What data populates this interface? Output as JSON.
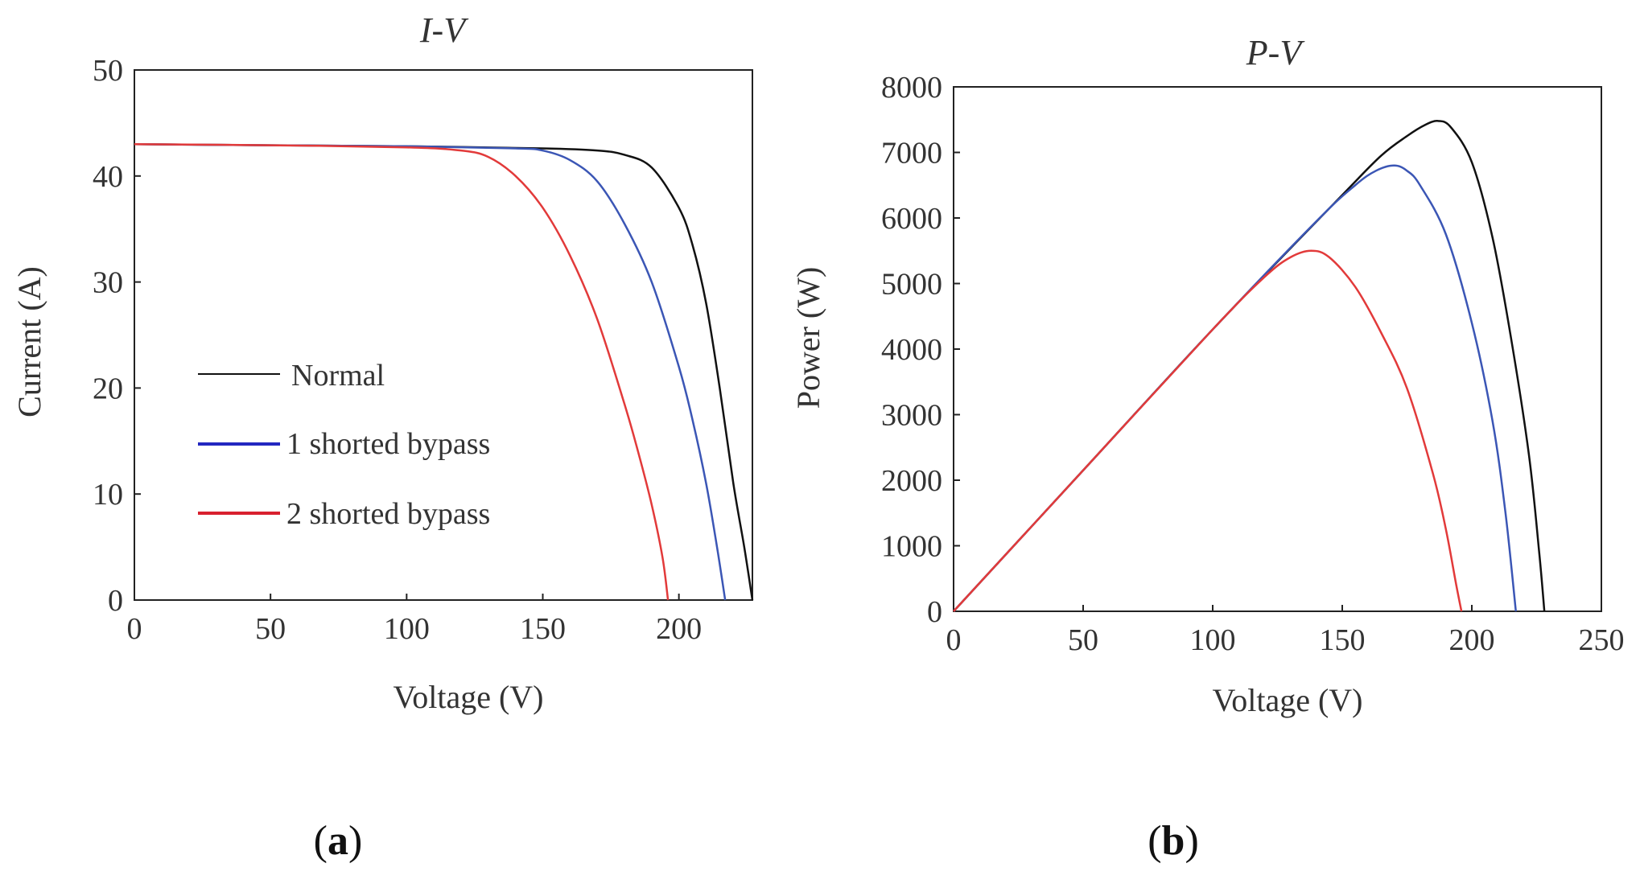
{
  "chart_data": [
    {
      "type": "line",
      "title": "I-V",
      "xlabel": "Voltage (V)",
      "ylabel": "Current (A)",
      "xlim": [
        0,
        227
      ],
      "ylim": [
        0,
        50
      ],
      "xticks": [
        0,
        50,
        100,
        150,
        200
      ],
      "yticks": [
        0,
        10,
        20,
        30,
        40,
        50
      ],
      "grid": false,
      "legend_position": "center-left",
      "panel_label": {
        "open": "(",
        "letter": "a",
        "close": ")"
      },
      "series": [
        {
          "name": "Normal",
          "color": "#111111",
          "x": [
            0,
            50,
            100,
            150,
            170,
            180,
            190,
            200,
            205,
            210,
            215,
            220,
            224,
            227
          ],
          "y": [
            43.0,
            42.9,
            42.8,
            42.6,
            42.4,
            42.0,
            40.8,
            37.0,
            33.5,
            28.0,
            20.0,
            11.0,
            5.0,
            0
          ]
        },
        {
          "name": "1 shorted bypass",
          "color": "#3b56b5",
          "x": [
            0,
            50,
            100,
            140,
            150,
            160,
            170,
            180,
            190,
            200,
            205,
            210,
            214,
            217
          ],
          "y": [
            43.0,
            42.9,
            42.8,
            42.6,
            42.4,
            41.5,
            39.5,
            35.5,
            30.0,
            22.0,
            17.0,
            11.0,
            5.0,
            0
          ]
        },
        {
          "name": "2 shorted bypass",
          "color": "#e23a3a",
          "x": [
            0,
            50,
            100,
            120,
            130,
            140,
            150,
            160,
            170,
            180,
            185,
            190,
            194,
            196
          ],
          "y": [
            43.0,
            42.9,
            42.7,
            42.4,
            41.8,
            40.0,
            37.0,
            32.5,
            26.5,
            18.5,
            14.0,
            9.0,
            4.0,
            0
          ]
        }
      ]
    },
    {
      "type": "line",
      "title": "P-V",
      "xlabel": "Voltage (V)",
      "ylabel": "Power (W)",
      "xlim": [
        0,
        250
      ],
      "ylim": [
        0,
        8000
      ],
      "xticks": [
        0,
        50,
        100,
        150,
        200,
        250
      ],
      "yticks": [
        0,
        1000,
        2000,
        3000,
        4000,
        5000,
        6000,
        7000,
        8000
      ],
      "grid": false,
      "panel_label": {
        "open": "(",
        "letter": "b",
        "close": ")"
      },
      "series": [
        {
          "name": "Normal",
          "color": "#111111",
          "x": [
            0,
            50,
            100,
            150,
            165,
            175,
            182,
            187,
            192,
            200,
            208,
            215,
            222,
            226,
            228
          ],
          "y": [
            0,
            2150,
            4300,
            6350,
            6950,
            7250,
            7420,
            7480,
            7380,
            6850,
            5700,
            4200,
            2400,
            900,
            0
          ]
        },
        {
          "name": "1 shorted bypass",
          "color": "#3b56b5",
          "x": [
            0,
            50,
            100,
            140,
            155,
            163,
            170,
            175,
            180,
            190,
            200,
            208,
            213,
            217
          ],
          "y": [
            0,
            2150,
            4300,
            5950,
            6500,
            6720,
            6800,
            6720,
            6500,
            5750,
            4400,
            2900,
            1500,
            0
          ]
        },
        {
          "name": "2 shorted bypass",
          "color": "#e23a3a",
          "x": [
            0,
            50,
            100,
            120,
            130,
            138,
            145,
            155,
            165,
            175,
            185,
            190,
            194,
            196
          ],
          "y": [
            0,
            2150,
            4300,
            5100,
            5400,
            5500,
            5400,
            4950,
            4250,
            3400,
            2100,
            1250,
            400,
            0
          ]
        }
      ]
    }
  ]
}
